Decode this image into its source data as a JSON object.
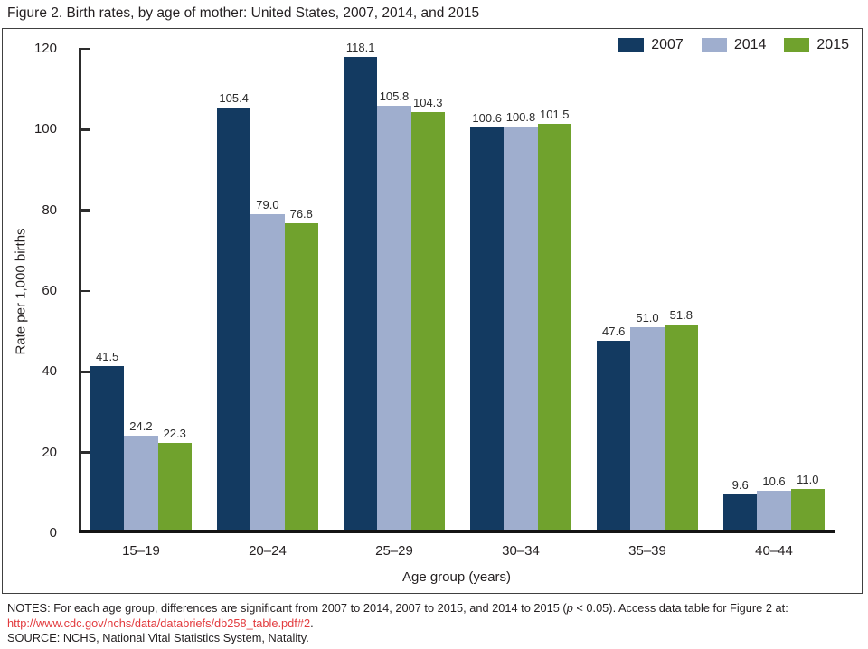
{
  "figure_title": "Figure 2. Birth rates, by age of mother: United States, 2007, 2014, and 2015",
  "chart_data": {
    "type": "bar",
    "title": "Birth rates, by age of mother: United States, 2007, 2014, and 2015",
    "categories": [
      "15–19",
      "20–24",
      "25–29",
      "30–34",
      "35–39",
      "40–44"
    ],
    "series": [
      {
        "name": "2007",
        "color": "#133a61",
        "values": [
          41.5,
          105.4,
          118.1,
          100.6,
          47.6,
          9.6
        ]
      },
      {
        "name": "2014",
        "color": "#9faece",
        "values": [
          24.2,
          79.0,
          105.8,
          100.8,
          51.0,
          10.6
        ]
      },
      {
        "name": "2015",
        "color": "#70a22d",
        "values": [
          22.3,
          76.8,
          104.3,
          101.5,
          51.8,
          11.0
        ]
      }
    ],
    "xlabel": "Age group (years)",
    "ylabel": "Rate per 1,000 births",
    "ylim": [
      0,
      120
    ],
    "yticks": [
      0,
      20,
      40,
      60,
      80,
      100,
      120
    ],
    "grid": false,
    "legend_position": "top-right",
    "value_labels": true
  },
  "notes": {
    "line1_prefix": "NOTES: For each age group, differences are significant from 2007 to 2014, 2007 to 2015, and 2014 to 2015 (",
    "line1_p": "p",
    "line1_suffix": " < 0.05). Access data table for Figure 2 at:",
    "link": "http://www.cdc.gov/nchs/data/databriefs/db258_table.pdf#2",
    "link_period": ".",
    "source": "SOURCE: NCHS, National Vital Statistics System, Natality.",
    "link_color": "#e23b3e"
  }
}
